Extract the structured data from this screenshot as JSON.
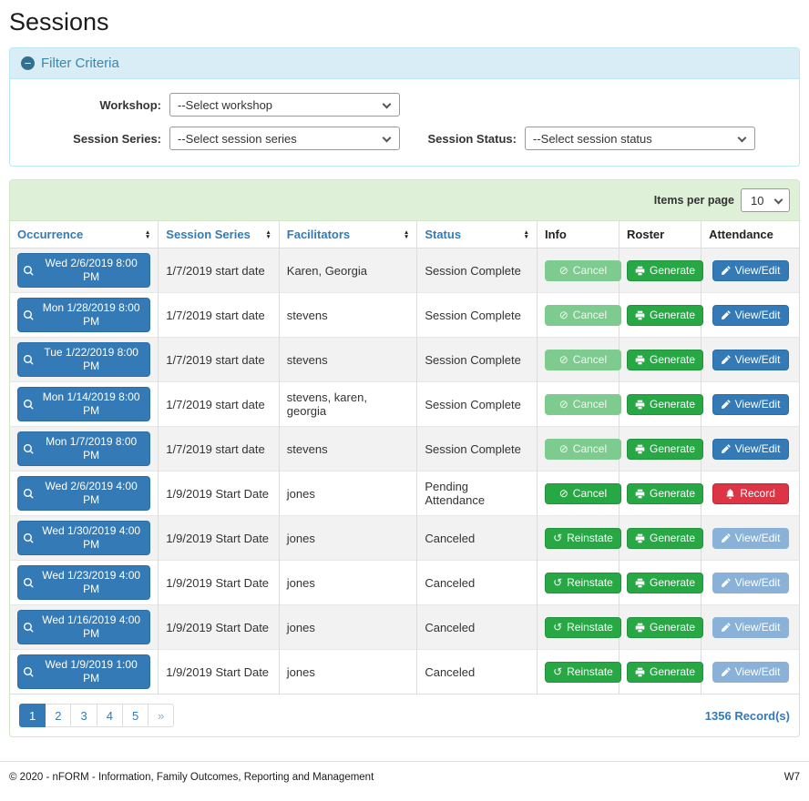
{
  "page_title": "Sessions",
  "filter": {
    "header": "Filter Criteria",
    "collapse_icon": "minus-circle-icon",
    "fields": [
      {
        "label": "Workshop:",
        "value": "--Select workshop"
      },
      {
        "label": "Session Series:",
        "value": "--Select session series"
      },
      {
        "label": "Session Status:",
        "value": "--Select session status"
      }
    ]
  },
  "table": {
    "items_per_page_label": "Items per page",
    "items_per_page_value": "10",
    "columns": [
      {
        "label": "Occurrence",
        "sortable": true
      },
      {
        "label": "Session Series",
        "sortable": true
      },
      {
        "label": "Facilitators",
        "sortable": true
      },
      {
        "label": "Status",
        "sortable": true
      },
      {
        "label": "Info",
        "sortable": false
      },
      {
        "label": "Roster",
        "sortable": false
      },
      {
        "label": "Attendance",
        "sortable": false
      }
    ],
    "rows": [
      {
        "occurrence": "Wed 2/6/2019 8:00 PM",
        "session_series": "1/7/2019 start date",
        "facilitators": "Karen, Georgia",
        "status": "Session Complete",
        "info": {
          "label": "Cancel",
          "icon": "cancel-icon",
          "color": "green",
          "disabled": true
        },
        "roster": {
          "label": "Generate",
          "icon": "printer-icon",
          "color": "green",
          "disabled": false
        },
        "attendance": {
          "label": "View/Edit",
          "icon": "pencil-icon",
          "color": "blue",
          "disabled": false
        }
      },
      {
        "occurrence": "Mon 1/28/2019 8:00 PM",
        "session_series": "1/7/2019 start date",
        "facilitators": "stevens",
        "status": "Session Complete",
        "info": {
          "label": "Cancel",
          "icon": "cancel-icon",
          "color": "green",
          "disabled": true
        },
        "roster": {
          "label": "Generate",
          "icon": "printer-icon",
          "color": "green",
          "disabled": false
        },
        "attendance": {
          "label": "View/Edit",
          "icon": "pencil-icon",
          "color": "blue",
          "disabled": false
        }
      },
      {
        "occurrence": "Tue 1/22/2019 8:00 PM",
        "session_series": "1/7/2019 start date",
        "facilitators": "stevens",
        "status": "Session Complete",
        "info": {
          "label": "Cancel",
          "icon": "cancel-icon",
          "color": "green",
          "disabled": true
        },
        "roster": {
          "label": "Generate",
          "icon": "printer-icon",
          "color": "green",
          "disabled": false
        },
        "attendance": {
          "label": "View/Edit",
          "icon": "pencil-icon",
          "color": "blue",
          "disabled": false
        }
      },
      {
        "occurrence": "Mon 1/14/2019 8:00 PM",
        "session_series": "1/7/2019 start date",
        "facilitators": "stevens, karen, georgia",
        "status": "Session Complete",
        "info": {
          "label": "Cancel",
          "icon": "cancel-icon",
          "color": "green",
          "disabled": true
        },
        "roster": {
          "label": "Generate",
          "icon": "printer-icon",
          "color": "green",
          "disabled": false
        },
        "attendance": {
          "label": "View/Edit",
          "icon": "pencil-icon",
          "color": "blue",
          "disabled": false
        }
      },
      {
        "occurrence": "Mon 1/7/2019 8:00 PM",
        "session_series": "1/7/2019 start date",
        "facilitators": "stevens",
        "status": "Session Complete",
        "info": {
          "label": "Cancel",
          "icon": "cancel-icon",
          "color": "green",
          "disabled": true
        },
        "roster": {
          "label": "Generate",
          "icon": "printer-icon",
          "color": "green",
          "disabled": false
        },
        "attendance": {
          "label": "View/Edit",
          "icon": "pencil-icon",
          "color": "blue",
          "disabled": false
        }
      },
      {
        "occurrence": "Wed 2/6/2019 4:00 PM",
        "session_series": "1/9/2019 Start Date",
        "facilitators": "jones",
        "status": "Pending Attendance",
        "info": {
          "label": "Cancel",
          "icon": "cancel-icon",
          "color": "green",
          "disabled": false
        },
        "roster": {
          "label": "Generate",
          "icon": "printer-icon",
          "color": "green",
          "disabled": false
        },
        "attendance": {
          "label": "Record",
          "icon": "bell-icon",
          "color": "red",
          "disabled": false
        }
      },
      {
        "occurrence": "Wed 1/30/2019 4:00 PM",
        "session_series": "1/9/2019 Start Date",
        "facilitators": "jones",
        "status": "Canceled",
        "info": {
          "label": "Reinstate",
          "icon": "reinstate-icon",
          "color": "green",
          "disabled": false
        },
        "roster": {
          "label": "Generate",
          "icon": "printer-icon",
          "color": "green",
          "disabled": false
        },
        "attendance": {
          "label": "View/Edit",
          "icon": "pencil-icon",
          "color": "blue",
          "disabled": true
        }
      },
      {
        "occurrence": "Wed 1/23/2019 4:00 PM",
        "session_series": "1/9/2019 Start Date",
        "facilitators": "jones",
        "status": "Canceled",
        "info": {
          "label": "Reinstate",
          "icon": "reinstate-icon",
          "color": "green",
          "disabled": false
        },
        "roster": {
          "label": "Generate",
          "icon": "printer-icon",
          "color": "green",
          "disabled": false
        },
        "attendance": {
          "label": "View/Edit",
          "icon": "pencil-icon",
          "color": "blue",
          "disabled": true
        }
      },
      {
        "occurrence": "Wed 1/16/2019 4:00 PM",
        "session_series": "1/9/2019 Start Date",
        "facilitators": "jones",
        "status": "Canceled",
        "info": {
          "label": "Reinstate",
          "icon": "reinstate-icon",
          "color": "green",
          "disabled": false
        },
        "roster": {
          "label": "Generate",
          "icon": "printer-icon",
          "color": "green",
          "disabled": false
        },
        "attendance": {
          "label": "View/Edit",
          "icon": "pencil-icon",
          "color": "blue",
          "disabled": true
        }
      },
      {
        "occurrence": "Wed 1/9/2019 1:00 PM",
        "session_series": "1/9/2019 Start Date",
        "facilitators": "jones",
        "status": "Canceled",
        "info": {
          "label": "Reinstate",
          "icon": "reinstate-icon",
          "color": "green",
          "disabled": false
        },
        "roster": {
          "label": "Generate",
          "icon": "printer-icon",
          "color": "green",
          "disabled": false
        },
        "attendance": {
          "label": "View/Edit",
          "icon": "pencil-icon",
          "color": "blue",
          "disabled": true
        }
      }
    ],
    "pagination": {
      "pages": [
        "1",
        "2",
        "3",
        "4",
        "5"
      ],
      "active": "1",
      "next_label": "»"
    },
    "record_count": "1356 Record(s)"
  },
  "footer": {
    "copyright": "© 2020 - nFORM - Information, Family Outcomes, Reporting and Management",
    "version": "W7"
  },
  "colors": {
    "accent_blue": "#337ab7",
    "action_green": "#28a745",
    "danger_red": "#dc3545",
    "filter_header_bg": "#d9edf7",
    "filter_border": "#bce8f1",
    "table_header_bg": "#dff0d8",
    "table_border": "#d0e6c4",
    "row_stripe": "#f2f2f2"
  }
}
